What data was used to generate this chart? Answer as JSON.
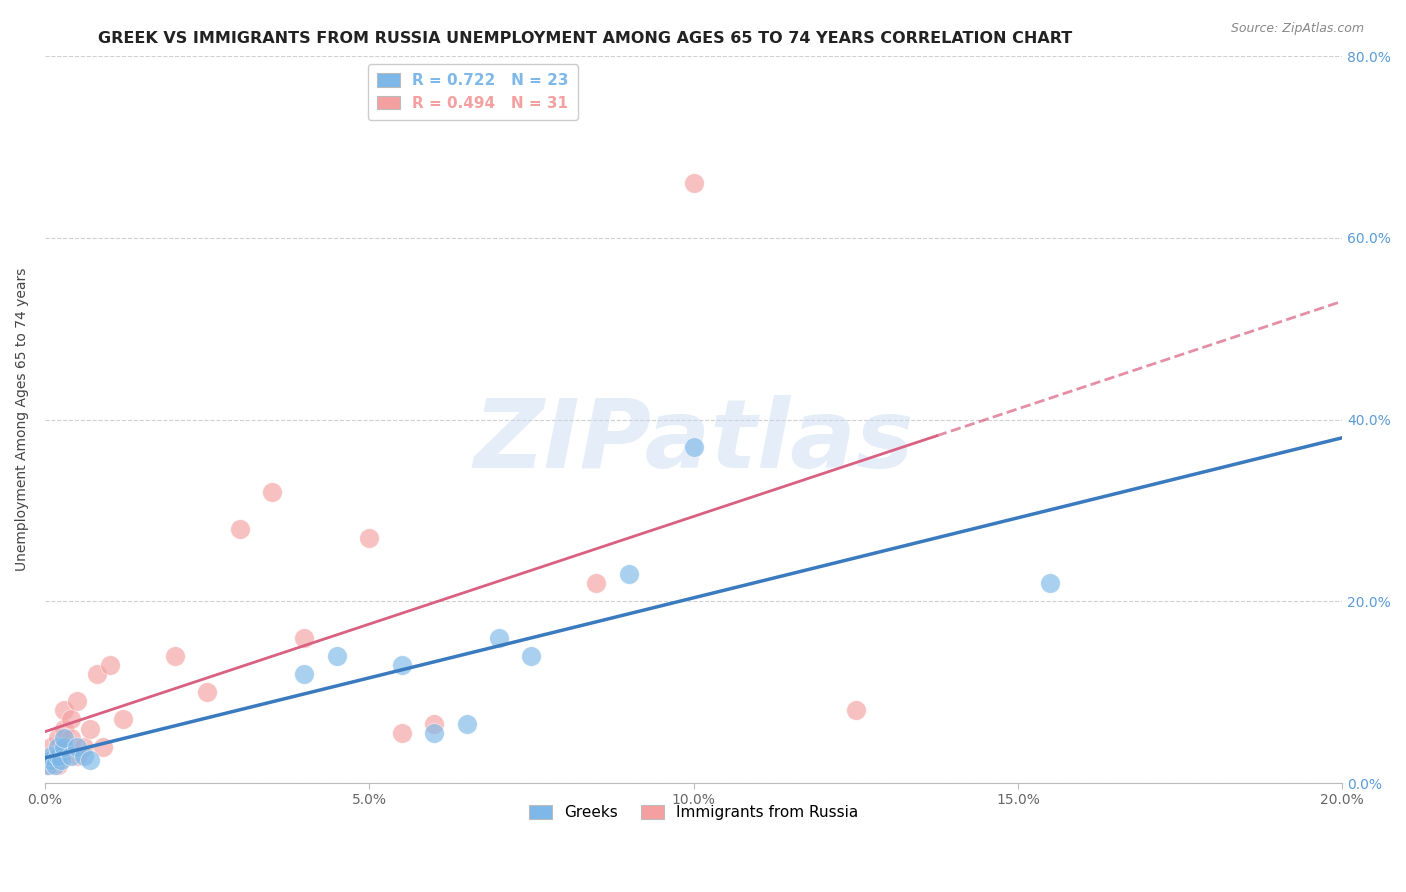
{
  "title": "GREEK VS IMMIGRANTS FROM RUSSIA UNEMPLOYMENT AMONG AGES 65 TO 74 YEARS CORRELATION CHART",
  "source": "Source: ZipAtlas.com",
  "ylabel": "Unemployment Among Ages 65 to 74 years",
  "xlim": [
    0.0,
    0.2
  ],
  "ylim": [
    0.0,
    0.8
  ],
  "xticks": [
    0.0,
    0.05,
    0.1,
    0.15,
    0.2
  ],
  "yticks": [
    0.0,
    0.2,
    0.4,
    0.6,
    0.8
  ],
  "legend_label_greeks": "Greeks",
  "legend_label_russia": "Immigrants from Russia",
  "watermark_text": "ZIPatlas",
  "background_color": "#ffffff",
  "grid_color": "#d0d0d0",
  "title_fontsize": 11.5,
  "axis_label_fontsize": 10,
  "tick_fontsize": 10,
  "source_fontsize": 9,
  "blue_color": "#7db8e8",
  "pink_color": "#f4a0a0",
  "blue_line_color": "#3a7abf",
  "pink_line_color": "#d96080",
  "right_axis_color": "#5b9bd5",
  "greeks_R": 0.722,
  "greeks_N": 23,
  "russia_R": 0.494,
  "russia_N": 31,
  "greeks_x": [
    0.0005,
    0.001,
    0.001,
    0.0015,
    0.002,
    0.002,
    0.0025,
    0.003,
    0.003,
    0.004,
    0.005,
    0.006,
    0.007,
    0.04,
    0.045,
    0.055,
    0.06,
    0.065,
    0.07,
    0.075,
    0.09,
    0.1,
    0.155
  ],
  "greeks_y": [
    0.02,
    0.025,
    0.03,
    0.02,
    0.03,
    0.04,
    0.025,
    0.04,
    0.05,
    0.03,
    0.04,
    0.03,
    0.025,
    0.12,
    0.14,
    0.13,
    0.055,
    0.065,
    0.16,
    0.14,
    0.23,
    0.37,
    0.22
  ],
  "russia_x": [
    0.0005,
    0.001,
    0.001,
    0.0015,
    0.002,
    0.002,
    0.0025,
    0.003,
    0.003,
    0.003,
    0.004,
    0.004,
    0.005,
    0.005,
    0.006,
    0.007,
    0.008,
    0.009,
    0.01,
    0.012,
    0.02,
    0.025,
    0.03,
    0.035,
    0.04,
    0.05,
    0.055,
    0.06,
    0.085,
    0.1,
    0.125
  ],
  "russia_y": [
    0.02,
    0.025,
    0.04,
    0.03,
    0.02,
    0.05,
    0.03,
    0.04,
    0.06,
    0.08,
    0.05,
    0.07,
    0.03,
    0.09,
    0.04,
    0.06,
    0.12,
    0.04,
    0.13,
    0.07,
    0.14,
    0.1,
    0.28,
    0.32,
    0.16,
    0.27,
    0.055,
    0.065,
    0.22,
    0.66,
    0.08
  ]
}
